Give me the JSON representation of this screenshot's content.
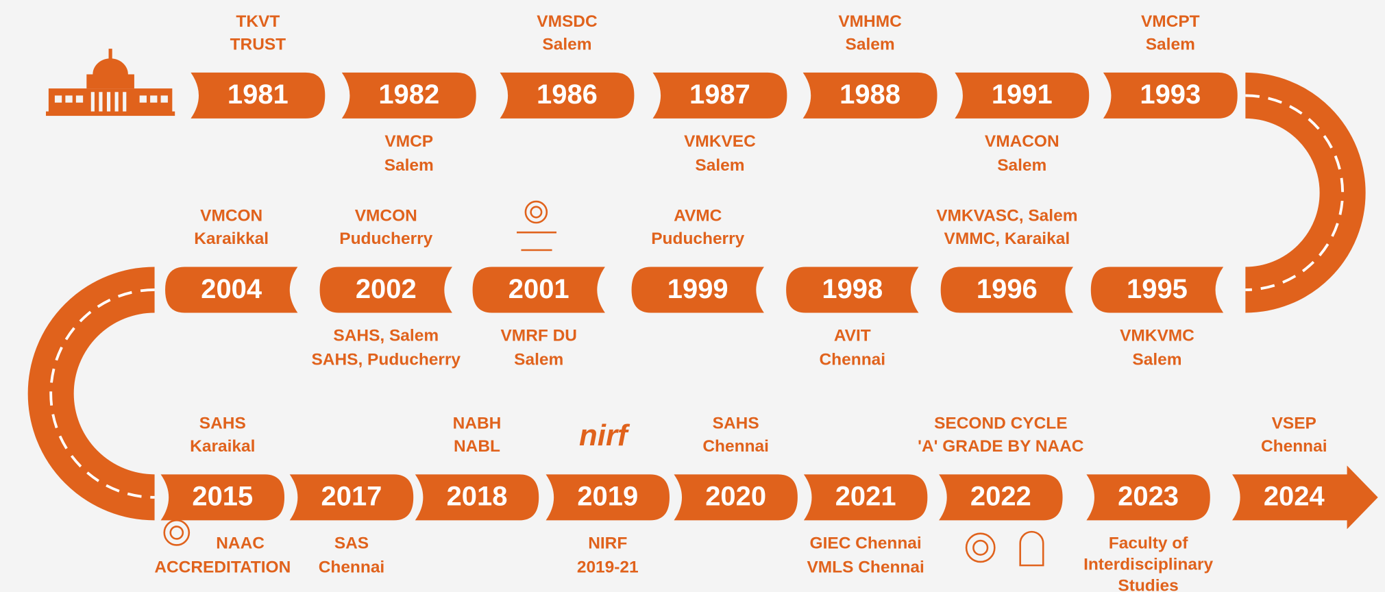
{
  "rows": [
    [
      {
        "year": "1981",
        "above": [
          "TKVT",
          "TRUST"
        ],
        "below": []
      },
      {
        "year": "1982",
        "above": [],
        "below": [
          "VMCP",
          "Salem"
        ]
      },
      {
        "year": "1986",
        "above": [
          "VMSDC",
          "Salem"
        ],
        "below": []
      },
      {
        "year": "1987",
        "above": [],
        "below": [
          "VMKVEC",
          "Salem"
        ]
      },
      {
        "year": "1988",
        "above": [
          "VMHMC",
          "Salem"
        ],
        "below": []
      },
      {
        "year": "1991",
        "above": [],
        "below": [
          "VMACON",
          "Salem"
        ]
      },
      {
        "year": "1993",
        "above": [
          "VMCPT",
          "Salem"
        ],
        "below": []
      }
    ],
    [
      {
        "year": "1995",
        "above": [],
        "below": [
          "VMKVMC",
          "Salem"
        ]
      },
      {
        "year": "1996",
        "above": [
          "VMKVASC, Salem",
          "VMMC, Karaikal"
        ],
        "below": []
      },
      {
        "year": "1998",
        "above": [],
        "below": [
          "AVIT",
          "Chennai"
        ]
      },
      {
        "year": "1999",
        "above": [
          "AVMC",
          "Puducherry"
        ],
        "below": []
      },
      {
        "year": "2001",
        "above": [],
        "below": [
          "VMRF DU",
          "Salem"
        ]
      },
      {
        "year": "2002",
        "above": [
          "VMCON",
          "Puducherry"
        ],
        "below": [
          "SAHS, Salem",
          "SAHS, Puducherry"
        ]
      },
      {
        "year": "2004",
        "above": [
          "VMCON",
          "Karaikkal"
        ],
        "below": []
      }
    ],
    [
      {
        "year": "2015",
        "above": [
          "SAHS",
          "Karaikal"
        ],
        "below": [
          "NAAC",
          "ACCREDITATION"
        ]
      },
      {
        "year": "2017",
        "above": [],
        "below": [
          "SAS",
          "Chennai"
        ]
      },
      {
        "year": "2018",
        "above": [
          "NABH",
          "NABL"
        ],
        "below": []
      },
      {
        "year": "2019",
        "above": [],
        "below": [
          "NIRF",
          "2019-21"
        ],
        "logo": "nirf"
      },
      {
        "year": "2020",
        "above": [
          "SAHS",
          "Chennai"
        ],
        "below": []
      },
      {
        "year": "2021",
        "above": [],
        "below": [
          "GIEC Chennai",
          "VMLS Chennai"
        ]
      },
      {
        "year": "2022",
        "above": [
          "SECOND CYCLE",
          "'A' GRADE BY NAAC"
        ],
        "below": []
      },
      {
        "year": "2023",
        "above": [],
        "below": [
          "Faculty of",
          "Interdisciplinary",
          "Studies"
        ]
      },
      {
        "year": "2024",
        "above": [
          "VSEP",
          "Chennai"
        ],
        "below": []
      }
    ]
  ]
}
